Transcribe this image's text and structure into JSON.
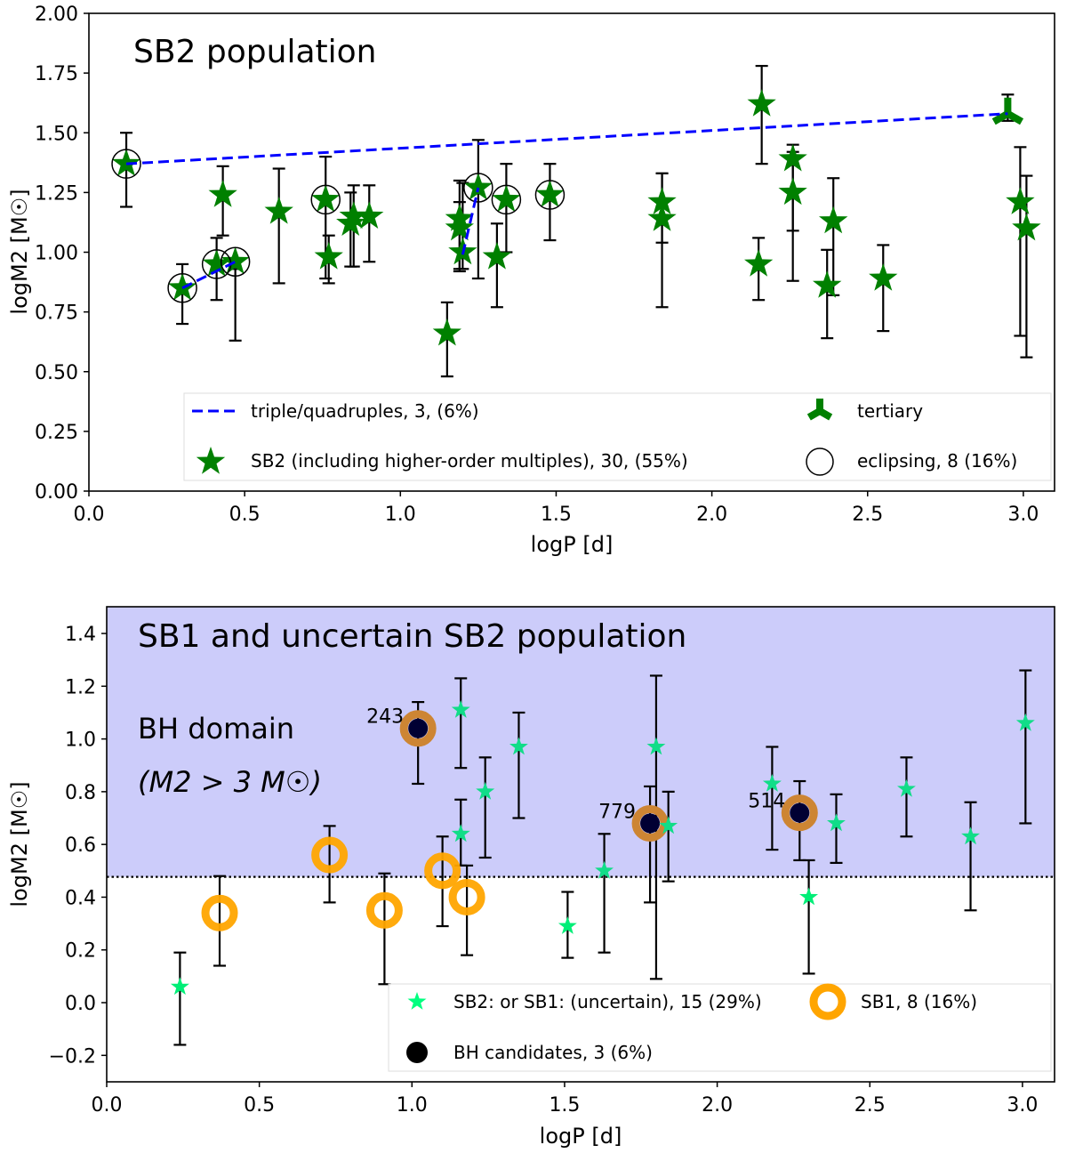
{
  "chart_data": [
    {
      "type": "scatter",
      "title": "SB2 population",
      "xlabel": "logP [d]",
      "ylabel": "logM2 [M☉]",
      "xlim": [
        0.0,
        3.1
      ],
      "ylim": [
        0.0,
        2.0
      ],
      "xticks": [
        "0.0",
        "0.5",
        "1.0",
        "1.5",
        "2.0",
        "2.5",
        "3.0"
      ],
      "xtick_values": [
        0.0,
        0.5,
        1.0,
        1.5,
        2.0,
        2.5,
        3.0
      ],
      "yticks": [
        "0.00",
        "0.25",
        "0.50",
        "0.75",
        "1.00",
        "1.25",
        "1.50",
        "1.75",
        "2.00"
      ],
      "ytick_values": [
        0.0,
        0.25,
        0.5,
        0.75,
        1.0,
        1.25,
        1.5,
        1.75,
        2.0
      ],
      "grid": false,
      "legend_position": "bottom",
      "legend": [
        {
          "key": "triple",
          "label": "triple/quadruples, 3, (6%)",
          "marker": "dashed-line",
          "color": "#0000ff"
        },
        {
          "key": "tertiary",
          "label": "tertiary",
          "marker": "tri-down",
          "color": "#008000"
        },
        {
          "key": "sb2",
          "label": "SB2 (including higher-order multiples), 30, (55%)",
          "marker": "star",
          "color": "#008000"
        },
        {
          "key": "eclipsing",
          "label": "eclipsing, 8 (16%)",
          "marker": "open-circle",
          "color": "#000000"
        }
      ],
      "series": [
        {
          "name": "SB2 (including higher-order multiples)",
          "marker": "star",
          "color": "#008000",
          "points": [
            {
              "x": 0.12,
              "y": 1.37,
              "ylo": 1.19,
              "yhi": 1.5
            },
            {
              "x": 0.3,
              "y": 0.85,
              "ylo": 0.7,
              "yhi": 0.95
            },
            {
              "x": 0.41,
              "y": 0.95,
              "ylo": 0.8,
              "yhi": 1.06
            },
            {
              "x": 0.43,
              "y": 1.24,
              "ylo": 1.07,
              "yhi": 1.36
            },
            {
              "x": 0.47,
              "y": 0.96,
              "ylo": 0.63,
              "yhi": 0.93
            },
            {
              "x": 0.61,
              "y": 1.17,
              "ylo": 0.87,
              "yhi": 1.35
            },
            {
              "x": 0.76,
              "y": 1.22,
              "ylo": 0.89,
              "yhi": 1.4
            },
            {
              "x": 0.77,
              "y": 0.98,
              "ylo": 0.87,
              "yhi": 1.07
            },
            {
              "x": 0.84,
              "y": 1.12,
              "ylo": 0.94,
              "yhi": 1.25
            },
            {
              "x": 0.85,
              "y": 1.15,
              "ylo": 0.94,
              "yhi": 1.28
            },
            {
              "x": 0.9,
              "y": 1.15,
              "ylo": 0.96,
              "yhi": 1.28
            },
            {
              "x": 1.15,
              "y": 0.66,
              "ylo": 0.48,
              "yhi": 0.79
            },
            {
              "x": 1.19,
              "y": 1.14,
              "ylo": 0.93,
              "yhi": 1.3
            },
            {
              "x": 1.19,
              "y": 1.1,
              "ylo": 0.92,
              "yhi": 1.21
            },
            {
              "x": 1.2,
              "y": 1.0,
              "ylo": 0.93,
              "yhi": 1.29
            },
            {
              "x": 1.25,
              "y": 1.27,
              "ylo": 0.89,
              "yhi": 1.47
            },
            {
              "x": 1.31,
              "y": 0.98,
              "ylo": 0.77,
              "yhi": 1.12
            },
            {
              "x": 1.34,
              "y": 1.22,
              "ylo": 1.0,
              "yhi": 1.37
            },
            {
              "x": 1.48,
              "y": 1.24,
              "ylo": 1.05,
              "yhi": 1.37
            },
            {
              "x": 1.84,
              "y": 1.21,
              "ylo": 0.77,
              "yhi": 1.33
            },
            {
              "x": 1.84,
              "y": 1.14,
              "ylo": 1.04,
              "yhi": 1.33
            },
            {
              "x": 2.16,
              "y": 1.62,
              "ylo": 1.37,
              "yhi": 1.78
            },
            {
              "x": 2.15,
              "y": 0.95,
              "ylo": 0.8,
              "yhi": 1.06
            },
            {
              "x": 2.26,
              "y": 1.39,
              "ylo": 0.88,
              "yhi": 1.45
            },
            {
              "x": 2.26,
              "y": 1.25,
              "ylo": 1.09,
              "yhi": 1.42
            },
            {
              "x": 2.39,
              "y": 1.13,
              "ylo": 0.82,
              "yhi": 1.31
            },
            {
              "x": 2.37,
              "y": 0.86,
              "ylo": 0.64,
              "yhi": 1.01
            },
            {
              "x": 2.55,
              "y": 0.89,
              "ylo": 0.67,
              "yhi": 1.03
            },
            {
              "x": 2.99,
              "y": 1.21,
              "ylo": 0.65,
              "yhi": 1.44
            },
            {
              "x": 3.01,
              "y": 1.1,
              "ylo": 0.56,
              "yhi": 1.32
            }
          ]
        },
        {
          "name": "tertiary",
          "marker": "tri-down",
          "color": "#008000",
          "points": [
            {
              "x": 2.95,
              "y": 1.58,
              "ylo": 1.55,
              "yhi": 1.66
            }
          ]
        },
        {
          "name": "eclipsing",
          "marker": "open-circle",
          "color": "#000000",
          "points": [
            {
              "x": 0.12,
              "y": 1.37
            },
            {
              "x": 0.3,
              "y": 0.85
            },
            {
              "x": 0.41,
              "y": 0.95
            },
            {
              "x": 0.47,
              "y": 0.96
            },
            {
              "x": 0.76,
              "y": 1.22
            },
            {
              "x": 1.25,
              "y": 1.27
            },
            {
              "x": 1.34,
              "y": 1.22
            },
            {
              "x": 1.48,
              "y": 1.24
            }
          ]
        }
      ],
      "lines": [
        {
          "name": "triple/quadruples",
          "style": "dashed",
          "color": "#0000ff",
          "points": [
            [
              0.12,
              1.37
            ],
            [
              2.95,
              1.58
            ]
          ]
        },
        {
          "name": "triple/quadruples",
          "style": "dashed",
          "color": "#0000ff",
          "points": [
            [
              0.3,
              0.85
            ],
            [
              0.47,
              0.96
            ]
          ]
        },
        {
          "name": "triple/quadruples",
          "style": "dashed",
          "color": "#0000ff",
          "points": [
            [
              1.2,
              0.99
            ],
            [
              1.25,
              1.27
            ]
          ]
        }
      ]
    },
    {
      "type": "scatter",
      "title": "SB1 and uncertain SB2 population",
      "xlabel": "logP [d]",
      "ylabel": "logM2 [M☉]",
      "xlim": [
        0.0,
        3.1
      ],
      "ylim": [
        -0.3,
        1.5
      ],
      "xticks": [
        "0.0",
        "0.5",
        "1.0",
        "1.5",
        "2.0",
        "2.5",
        "3.0"
      ],
      "xtick_values": [
        0.0,
        0.5,
        1.0,
        1.5,
        2.0,
        2.5,
        3.0
      ],
      "yticks": [
        "−0.2",
        "0.0",
        "0.2",
        "0.4",
        "0.6",
        "0.8",
        "1.0",
        "1.2",
        "1.4"
      ],
      "ytick_values": [
        -0.2,
        0.0,
        0.2,
        0.4,
        0.6,
        0.8,
        1.0,
        1.2,
        1.4
      ],
      "grid": false,
      "legend_position": "bottom-right",
      "shaded_region": {
        "label": "BH domain",
        "sublabel": "(M2 > 3 M☉)",
        "ymin": 0.477,
        "color": "#ccccfa",
        "boundary_style": "dotted"
      },
      "legend": [
        {
          "key": "sb2u",
          "label": "SB2: or SB1: (uncertain), 15 (29%)",
          "marker": "small-star",
          "color": "#00e676"
        },
        {
          "key": "sb1",
          "label": "SB1, 8 (16%)",
          "marker": "thick-ring",
          "color": "#ffa500"
        },
        {
          "key": "bh",
          "label": "BH candidates, 3 (6%)",
          "marker": "filled-circle",
          "color": "#000000"
        }
      ],
      "series": [
        {
          "name": "SB2: or SB1: (uncertain)",
          "marker": "small-star",
          "color": "#00ee77",
          "points": [
            {
              "x": 0.24,
              "y": 0.06,
              "ylo": -0.16,
              "yhi": 0.19
            },
            {
              "x": 1.16,
              "y": 1.11,
              "ylo": 0.89,
              "yhi": 1.23
            },
            {
              "x": 1.16,
              "y": 0.64,
              "ylo": 0.52,
              "yhi": 0.77
            },
            {
              "x": 1.24,
              "y": 0.8,
              "ylo": 0.55,
              "yhi": 0.93
            },
            {
              "x": 1.35,
              "y": 0.97,
              "ylo": 0.7,
              "yhi": 1.1
            },
            {
              "x": 1.51,
              "y": 0.29,
              "ylo": 0.17,
              "yhi": 0.42
            },
            {
              "x": 1.63,
              "y": 0.5,
              "ylo": 0.19,
              "yhi": 0.64
            },
            {
              "x": 1.8,
              "y": 0.97,
              "ylo": 0.09,
              "yhi": 1.24
            },
            {
              "x": 1.84,
              "y": 0.67,
              "ylo": 0.46,
              "yhi": 0.8
            },
            {
              "x": 2.18,
              "y": 0.83,
              "ylo": 0.58,
              "yhi": 0.97
            },
            {
              "x": 2.3,
              "y": 0.4,
              "ylo": 0.11,
              "yhi": 0.54
            },
            {
              "x": 2.39,
              "y": 0.68,
              "ylo": 0.53,
              "yhi": 0.79
            },
            {
              "x": 2.62,
              "y": 0.81,
              "ylo": 0.63,
              "yhi": 0.93
            },
            {
              "x": 2.83,
              "y": 0.63,
              "ylo": 0.35,
              "yhi": 0.76
            },
            {
              "x": 3.01,
              "y": 1.06,
              "ylo": 0.68,
              "yhi": 1.26
            }
          ]
        },
        {
          "name": "SB1",
          "marker": "thick-ring",
          "color": "#ffa500",
          "points": [
            {
              "x": 0.37,
              "y": 0.34,
              "ylo": 0.14,
              "yhi": 0.48
            },
            {
              "x": 0.73,
              "y": 0.56,
              "ylo": 0.38,
              "yhi": 0.67
            },
            {
              "x": 0.91,
              "y": 0.35,
              "ylo": 0.07,
              "yhi": 0.49
            },
            {
              "x": 1.1,
              "y": 0.5,
              "ylo": 0.29,
              "yhi": 0.63
            },
            {
              "x": 1.18,
              "y": 0.4,
              "ylo": 0.18,
              "yhi": 0.52
            }
          ]
        },
        {
          "name": "BH candidates",
          "marker": "filled-circle-with-ring",
          "color": "#000033",
          "ring_color": "#ffa500",
          "points": [
            {
              "x": 1.02,
              "y": 1.04,
              "ylo": 0.83,
              "yhi": 1.14,
              "label": "243"
            },
            {
              "x": 1.78,
              "y": 0.68,
              "ylo": 0.38,
              "yhi": 0.82,
              "label": "779"
            },
            {
              "x": 2.27,
              "y": 0.72,
              "ylo": 0.54,
              "yhi": 0.84,
              "label": "514"
            }
          ]
        }
      ]
    }
  ]
}
